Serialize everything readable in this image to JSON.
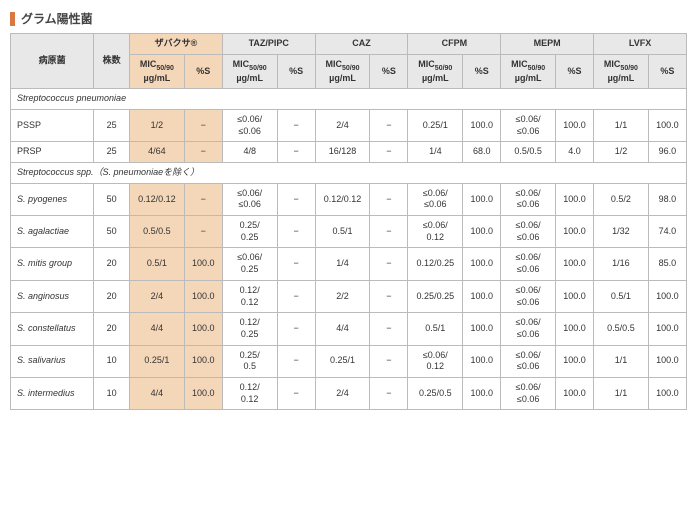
{
  "title": "グラム陽性菌",
  "headers": {
    "pathogen": "病原菌",
    "strains": "株数",
    "drugs": [
      "ザバクサ®",
      "TAZ/PIPC",
      "CAZ",
      "CFPM",
      "MEPM",
      "LVFX"
    ],
    "mic_label_html": "MIC<span class='sub'>50/90</span><br>µg/mL",
    "ps_label": "%S"
  },
  "groups": [
    {
      "label": "Streptococcus pneumoniae",
      "rows": [
        {
          "org": "PSSP",
          "italic": false,
          "n": "25",
          "d": [
            {
              "mic": "1/2",
              "s": "−",
              "hl": true
            },
            {
              "mic": "≤0.06/\n≤0.06",
              "s": "−"
            },
            {
              "mic": "2/4",
              "s": "−"
            },
            {
              "mic": "0.25/1",
              "s": "100.0"
            },
            {
              "mic": "≤0.06/\n≤0.06",
              "s": "100.0"
            },
            {
              "mic": "1/1",
              "s": "100.0"
            }
          ]
        },
        {
          "org": "PRSP",
          "italic": false,
          "n": "25",
          "d": [
            {
              "mic": "4/64",
              "s": "−",
              "hl": true
            },
            {
              "mic": "4/8",
              "s": "−"
            },
            {
              "mic": "16/128",
              "s": "−"
            },
            {
              "mic": "1/4",
              "s": "68.0"
            },
            {
              "mic": "0.5/0.5",
              "s": "4.0"
            },
            {
              "mic": "1/2",
              "s": "96.0"
            }
          ]
        }
      ]
    },
    {
      "label": "Streptococcus spp.（S. pneumoniaeを除く）",
      "rows": [
        {
          "org": "S. pyogenes",
          "italic": true,
          "n": "50",
          "d": [
            {
              "mic": "0.12/0.12",
              "s": "−",
              "hl": true
            },
            {
              "mic": "≤0.06/\n≤0.06",
              "s": "−"
            },
            {
              "mic": "0.12/0.12",
              "s": "−"
            },
            {
              "mic": "≤0.06/\n≤0.06",
              "s": "100.0"
            },
            {
              "mic": "≤0.06/\n≤0.06",
              "s": "100.0"
            },
            {
              "mic": "0.5/2",
              "s": "98.0"
            }
          ]
        },
        {
          "org": "S. agalactiae",
          "italic": true,
          "n": "50",
          "d": [
            {
              "mic": "0.5/0.5",
              "s": "−",
              "hl": true
            },
            {
              "mic": "0.25/\n0.25",
              "s": "−"
            },
            {
              "mic": "0.5/1",
              "s": "−"
            },
            {
              "mic": "≤0.06/\n0.12",
              "s": "100.0"
            },
            {
              "mic": "≤0.06/\n≤0.06",
              "s": "100.0"
            },
            {
              "mic": "1/32",
              "s": "74.0"
            }
          ]
        },
        {
          "org": "S. mitis group",
          "italic": true,
          "n": "20",
          "d": [
            {
              "mic": "0.5/1",
              "s": "100.0",
              "hl": true
            },
            {
              "mic": "≤0.06/\n0.25",
              "s": "−"
            },
            {
              "mic": "1/4",
              "s": "−"
            },
            {
              "mic": "0.12/0.25",
              "s": "100.0"
            },
            {
              "mic": "≤0.06/\n≤0.06",
              "s": "100.0"
            },
            {
              "mic": "1/16",
              "s": "85.0"
            }
          ]
        },
        {
          "org": "S. anginosus",
          "italic": true,
          "n": "20",
          "d": [
            {
              "mic": "2/4",
              "s": "100.0",
              "hl": true
            },
            {
              "mic": "0.12/\n0.12",
              "s": "−"
            },
            {
              "mic": "2/2",
              "s": "−"
            },
            {
              "mic": "0.25/0.25",
              "s": "100.0"
            },
            {
              "mic": "≤0.06/\n≤0.06",
              "s": "100.0"
            },
            {
              "mic": "0.5/1",
              "s": "100.0"
            }
          ]
        },
        {
          "org": "S. constellatus",
          "italic": true,
          "n": "20",
          "d": [
            {
              "mic": "4/4",
              "s": "100.0",
              "hl": true
            },
            {
              "mic": "0.12/\n0.25",
              "s": "−"
            },
            {
              "mic": "4/4",
              "s": "−"
            },
            {
              "mic": "0.5/1",
              "s": "100.0"
            },
            {
              "mic": "≤0.06/\n≤0.06",
              "s": "100.0"
            },
            {
              "mic": "0.5/0.5",
              "s": "100.0"
            }
          ]
        },
        {
          "org": "S. salivarius",
          "italic": true,
          "n": "10",
          "d": [
            {
              "mic": "0.25/1",
              "s": "100.0",
              "hl": true
            },
            {
              "mic": "0.25/\n0.5",
              "s": "−"
            },
            {
              "mic": "0.25/1",
              "s": "−"
            },
            {
              "mic": "≤0.06/\n0.12",
              "s": "100.0"
            },
            {
              "mic": "≤0.06/\n≤0.06",
              "s": "100.0"
            },
            {
              "mic": "1/1",
              "s": "100.0"
            }
          ]
        },
        {
          "org": "S. intermedius",
          "italic": true,
          "n": "10",
          "d": [
            {
              "mic": "4/4",
              "s": "100.0",
              "hl": true
            },
            {
              "mic": "0.12/\n0.12",
              "s": "−"
            },
            {
              "mic": "2/4",
              "s": "−"
            },
            {
              "mic": "0.25/0.5",
              "s": "100.0"
            },
            {
              "mic": "≤0.06/\n≤0.06",
              "s": "100.0"
            },
            {
              "mic": "1/1",
              "s": "100.0"
            }
          ]
        }
      ]
    }
  ]
}
